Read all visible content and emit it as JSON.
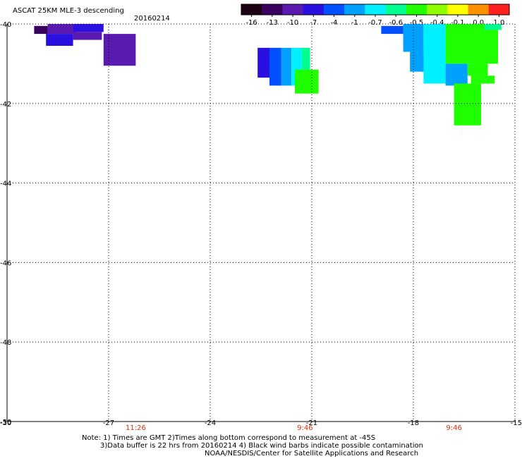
{
  "header": {
    "title": "ASCAT 25KM MLE-3 descending",
    "date": "20160214"
  },
  "colorbar": {
    "tick_labels": [
      "-16",
      "-13",
      "-10",
      "-7",
      "-4",
      "-1",
      "-0.7",
      "-0.6",
      "-0.5",
      "-0.4",
      "-0.1",
      "0.0",
      "1.0"
    ],
    "colors": [
      "#1a0010",
      "#3a0060",
      "#5a1ab0",
      "#2a10e0",
      "#0050ff",
      "#00a0ff",
      "#00f0ff",
      "#00ff90",
      "#20ff00",
      "#90ff00",
      "#ffff00",
      "#ff9000",
      "#ff2020"
    ]
  },
  "axes": {
    "x_tick_labels": [
      "-30",
      "-27",
      "-24",
      "-21",
      "-18",
      "-15"
    ],
    "y_tick_labels": [
      "-40",
      "-42",
      "-44",
      "-46",
      "-48",
      "-50"
    ],
    "x_range": [
      -30,
      -15
    ],
    "y_range": [
      -50,
      -40
    ]
  },
  "time_labels": [
    {
      "text": "11:26",
      "lon": -26.2
    },
    {
      "text": "9:46",
      "lon": -21.2
    },
    {
      "text": "9:46",
      "lon": -16.8
    }
  ],
  "notes": {
    "line1": "Note: 1) Times are GMT 2)Times along bottom correspond to measurement at -45S",
    "line2": "3)Data buffer is 22 hrs from 20160214 4) Black wind barbs indicate possible contamination",
    "line3": "NOAA/NESDIS/Center for Satellite Applications and Research"
  },
  "chart_data": {
    "type": "heatmap",
    "title": "ASCAT 25KM MLE-3 descending",
    "xlim": [
      -30,
      -15
    ],
    "ylim": [
      -50,
      -40
    ],
    "grid": true,
    "color_scale_labels": [
      "-16",
      "-13",
      "-10",
      "-7",
      "-4",
      "-1",
      "-0.7",
      "-0.6",
      "-0.5",
      "-0.4",
      "-0.1",
      "0.0",
      "1.0"
    ],
    "cells": [
      {
        "lon": [
          -29.2,
          -28.8
        ],
        "lat": [
          -40.05,
          -40.25
        ],
        "value": -13
      },
      {
        "lon": [
          -28.8,
          -27.95
        ],
        "lat": [
          -40.0,
          -40.25
        ],
        "value": -10
      },
      {
        "lon": [
          -28.85,
          -28.05
        ],
        "lat": [
          -40.25,
          -40.55
        ],
        "value": -7
      },
      {
        "lon": [
          -28.05,
          -27.15
        ],
        "lat": [
          -40.0,
          -40.2
        ],
        "value": -7
      },
      {
        "lon": [
          -28.05,
          -27.2
        ],
        "lat": [
          -40.2,
          -40.4
        ],
        "value": -10
      },
      {
        "lon": [
          -27.15,
          -26.2
        ],
        "lat": [
          -40.25,
          -41.05
        ],
        "value": -10
      },
      {
        "lon": [
          -22.6,
          -22.25
        ],
        "lat": [
          -40.6,
          -41.35
        ],
        "value": -7
      },
      {
        "lon": [
          -22.25,
          -21.9
        ],
        "lat": [
          -40.6,
          -41.55
        ],
        "value": -4
      },
      {
        "lon": [
          -21.9,
          -21.6
        ],
        "lat": [
          -40.6,
          -41.55
        ],
        "value": -1
      },
      {
        "lon": [
          -21.6,
          -21.3
        ],
        "lat": [
          -40.6,
          -41.55
        ],
        "value": -0.7
      },
      {
        "lon": [
          -21.3,
          -21.05
        ],
        "lat": [
          -40.6,
          -41.15
        ],
        "value": -0.6
      },
      {
        "lon": [
          -21.5,
          -20.8
        ],
        "lat": [
          -41.15,
          -41.75
        ],
        "value": -0.5
      },
      {
        "lon": [
          -18.95,
          -18.3
        ],
        "lat": [
          -40.05,
          -40.25
        ],
        "value": -4
      },
      {
        "lon": [
          -18.3,
          -17.7
        ],
        "lat": [
          -40.0,
          -40.7
        ],
        "value": -1
      },
      {
        "lon": [
          -18.1,
          -17.3
        ],
        "lat": [
          -40.7,
          -41.2
        ],
        "value": -1
      },
      {
        "lon": [
          -17.7,
          -17.05
        ],
        "lat": [
          -40.0,
          -41.5
        ],
        "value": -0.7
      },
      {
        "lon": [
          -17.05,
          -16.4
        ],
        "lat": [
          -41.0,
          -41.55
        ],
        "value": -1
      },
      {
        "lon": [
          -17.05,
          -15.5
        ],
        "lat": [
          -40.0,
          -41.0
        ],
        "value": -0.5
      },
      {
        "lon": [
          -16.4,
          -15.8
        ],
        "lat": [
          -41.0,
          -41.3
        ],
        "value": -0.5
      },
      {
        "lon": [
          -16.3,
          -15.6
        ],
        "lat": [
          -41.3,
          -41.5
        ],
        "value": -0.5
      },
      {
        "lon": [
          -16.8,
          -16.0
        ],
        "lat": [
          -41.5,
          -42.55
        ],
        "value": -0.5
      },
      {
        "lon": [
          -15.9,
          -15.4
        ],
        "lat": [
          -40.0,
          -40.15
        ],
        "value": -0.6
      }
    ]
  }
}
